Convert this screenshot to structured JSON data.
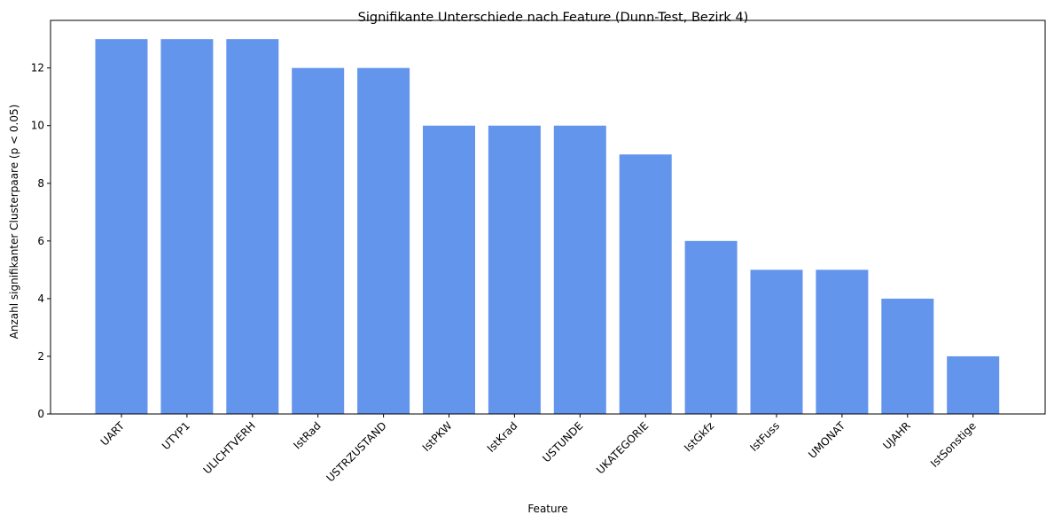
{
  "chart_data": {
    "type": "bar",
    "title": "Signifikante Unterschiede nach Feature (Dunn-Test, Bezirk 4)",
    "xlabel": "Feature",
    "ylabel": "Anzahl signifikanter Clusterpaare (p < 0.05)",
    "categories": [
      "UART",
      "UTYP1",
      "ULICHTVERH",
      "IstRad",
      "USTRZUSTAND",
      "IstPKW",
      "IstKrad",
      "USTUNDE",
      "UKATEGORIE",
      "IstGkfz",
      "IstFuss",
      "UMONAT",
      "UJAHR",
      "IstSonstige"
    ],
    "values": [
      13,
      13,
      13,
      12,
      12,
      10,
      10,
      10,
      9,
      6,
      5,
      5,
      4,
      2
    ],
    "ylim": [
      0,
      13.65
    ],
    "yticks": [
      0,
      2,
      4,
      6,
      8,
      10,
      12
    ],
    "bar_color": "#6495ED",
    "grid": false
  }
}
